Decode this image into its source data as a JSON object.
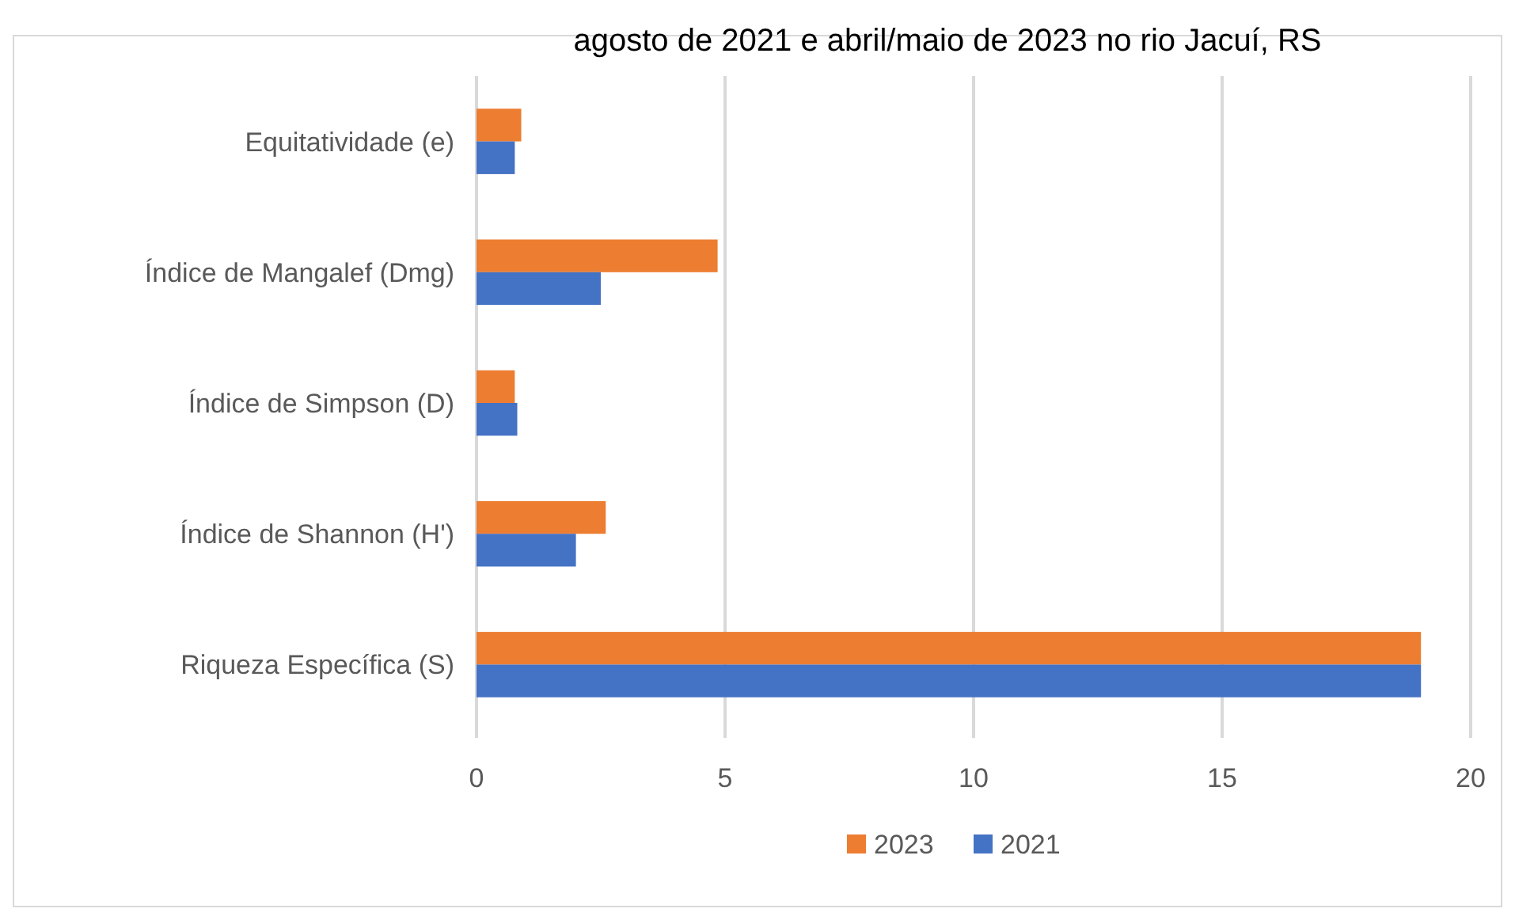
{
  "chart_data": {
    "type": "bar",
    "orientation": "horizontal",
    "title": "agosto de 2021 e abril/maio de 2023 no rio Jacuí, RS",
    "categories": [
      "Equitatividade (e)",
      "Índice de Mangalef (Dmg)",
      "Índice de Simpson (D)",
      "Índice de Shannon (H')",
      "Riqueza Específica (S)"
    ],
    "series": [
      {
        "name": "2023",
        "color": "#ed7d31",
        "values": [
          0.9,
          4.85,
          0.77,
          2.6,
          19
        ]
      },
      {
        "name": "2021",
        "color": "#4472c4",
        "values": [
          0.77,
          2.5,
          0.82,
          2.0,
          19
        ]
      }
    ],
    "xlim": [
      0,
      20
    ],
    "xticks": [
      0,
      5,
      10,
      15,
      20
    ],
    "grid": "x",
    "legend": "bottom"
  }
}
